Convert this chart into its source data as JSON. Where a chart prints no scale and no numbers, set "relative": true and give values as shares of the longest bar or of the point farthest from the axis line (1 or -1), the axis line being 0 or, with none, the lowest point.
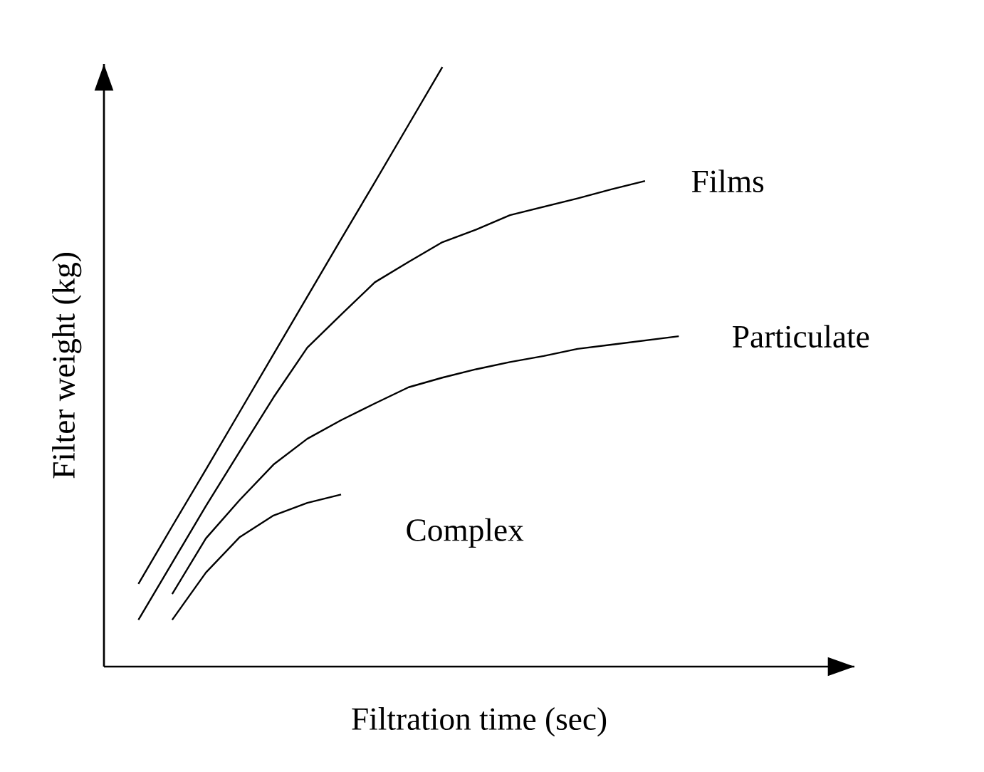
{
  "chart_data": {
    "type": "line",
    "relative": true,
    "xlabel": "Filtration time (sec)",
    "ylabel": "Filter weight (kg)",
    "legend": false,
    "categories": [
      null,
      null,
      null,
      null,
      null,
      null,
      null,
      null,
      null,
      null,
      null,
      null,
      null,
      null,
      null,
      null,
      null
    ],
    "series": [
      {
        "color": "#000000",
        "values": [
          0.138,
          0.234,
          0.329,
          0.425,
          0.521,
          0.617,
          0.713,
          0.808,
          0.904,
          1.0,
          null,
          null,
          null,
          null,
          null,
          null,
          null
        ]
      },
      {
        "name": "Films",
        "color": "#000000",
        "values": [
          0.078,
          0.173,
          0.268,
          0.359,
          0.449,
          0.532,
          0.587,
          0.641,
          0.675,
          0.708,
          0.729,
          0.753,
          0.767,
          0.781,
          0.796,
          0.81,
          null
        ]
      },
      {
        "name": "Particulate",
        "color": "#000000",
        "values": [
          null,
          0.121,
          0.214,
          0.278,
          0.337,
          0.38,
          0.411,
          0.439,
          0.466,
          0.482,
          0.496,
          0.508,
          0.518,
          0.53,
          0.537,
          0.544,
          0.551
        ]
      },
      {
        "name": "Complex",
        "color": "#000000",
        "values": [
          null,
          0.078,
          0.157,
          0.216,
          0.252,
          0.273,
          0.287,
          null,
          null,
          null,
          null,
          null,
          null,
          null,
          null,
          null,
          null
        ]
      }
    ]
  }
}
